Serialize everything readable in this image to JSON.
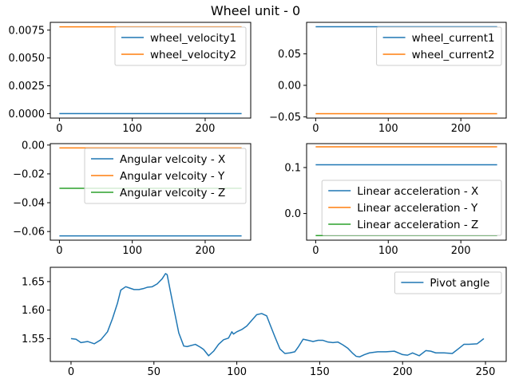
{
  "figure": {
    "suptitle": "Wheel unit - 0"
  },
  "chart_data": [
    {
      "type": "line",
      "title": "",
      "xlabel": "",
      "ylabel": "",
      "xlim": [
        -12.5,
        262.5
      ],
      "ylim": [
        -0.0004,
        0.0082
      ],
      "xticks": [
        0,
        100,
        200
      ],
      "yticks": [
        0.0,
        0.0025,
        0.005,
        0.0075
      ],
      "ytick_labels": [
        "0.0000",
        "0.0025",
        "0.0050",
        "0.0075"
      ],
      "grid": false,
      "legend_position": "upper-right",
      "series": [
        {
          "name": "wheel_velocity1",
          "color": "#1f77b4",
          "x": [
            0,
            250
          ],
          "y": [
            0.0,
            0.0
          ]
        },
        {
          "name": "wheel_velocity2",
          "color": "#ff7f0e",
          "x": [
            0,
            250
          ],
          "y": [
            0.0078,
            0.0078
          ]
        }
      ]
    },
    {
      "type": "line",
      "title": "",
      "xlabel": "",
      "ylabel": "",
      "xlim": [
        -12.5,
        262.5
      ],
      "ylim": [
        -0.052,
        0.1
      ],
      "xticks": [
        0,
        100,
        200
      ],
      "yticks": [
        -0.05,
        0.0,
        0.05
      ],
      "ytick_labels": [
        "−0.05",
        "0.00",
        "0.05"
      ],
      "grid": false,
      "legend_position": "upper-right",
      "series": [
        {
          "name": "wheel_current1",
          "color": "#1f77b4",
          "x": [
            0,
            250
          ],
          "y": [
            0.093,
            0.093
          ]
        },
        {
          "name": "wheel_current2",
          "color": "#ff7f0e",
          "x": [
            0,
            250
          ],
          "y": [
            -0.045,
            -0.045
          ]
        }
      ]
    },
    {
      "type": "line",
      "title": "",
      "xlabel": "",
      "ylabel": "",
      "xlim": [
        -12.5,
        262.5
      ],
      "ylim": [
        -0.066,
        0.001
      ],
      "xticks": [
        0,
        100,
        200
      ],
      "yticks": [
        0.0,
        -0.02,
        -0.04,
        -0.06
      ],
      "ytick_labels": [
        "0.00",
        "−0.02",
        "−0.04",
        "−0.06"
      ],
      "grid": false,
      "legend_position": "upper-right",
      "series": [
        {
          "name": "Angular velcoity - X",
          "color": "#1f77b4",
          "x": [
            0,
            250
          ],
          "y": [
            -0.063,
            -0.063
          ]
        },
        {
          "name": "Angular velcoity - Y",
          "color": "#ff7f0e",
          "x": [
            0,
            250
          ],
          "y": [
            -0.002,
            -0.002
          ]
        },
        {
          "name": "Angular velcoity - Z",
          "color": "#2ca02c",
          "x": [
            0,
            250
          ],
          "y": [
            -0.03,
            -0.03
          ]
        }
      ]
    },
    {
      "type": "line",
      "title": "",
      "xlabel": "",
      "ylabel": "",
      "xlim": [
        -12.5,
        262.5
      ],
      "ylim": [
        -0.058,
        0.152
      ],
      "xticks": [
        0,
        100,
        200
      ],
      "yticks": [
        0.0,
        0.1
      ],
      "ytick_labels": [
        "0.0",
        "0.1"
      ],
      "grid": false,
      "legend_position": "lower-right",
      "series": [
        {
          "name": "Linear acceleration - X",
          "color": "#1f77b4",
          "x": [
            0,
            250
          ],
          "y": [
            0.106,
            0.106
          ]
        },
        {
          "name": "Linear acceleration - Y",
          "color": "#ff7f0e",
          "x": [
            0,
            250
          ],
          "y": [
            0.145,
            0.145
          ]
        },
        {
          "name": "Linear acceleration - Z",
          "color": "#2ca02c",
          "x": [
            0,
            250
          ],
          "y": [
            -0.048,
            -0.048
          ]
        }
      ]
    },
    {
      "type": "line",
      "title": "",
      "xlabel": "",
      "ylabel": "",
      "xlim": [
        -12.5,
        262.5
      ],
      "ylim": [
        1.51,
        1.675
      ],
      "xticks": [
        0,
        50,
        100,
        150,
        200,
        250
      ],
      "yticks": [
        1.55,
        1.6,
        1.65
      ],
      "ytick_labels": [
        "1.55",
        "1.60",
        "1.65"
      ],
      "grid": false,
      "legend_position": "upper-right",
      "series": [
        {
          "name": "Pivot angle",
          "color": "#1f77b4",
          "x": [
            0,
            3,
            6,
            10,
            14,
            18,
            22,
            25,
            28,
            30,
            33,
            35,
            38,
            41,
            44,
            46,
            49,
            52,
            55,
            57,
            58,
            60,
            62,
            65,
            68,
            70,
            75,
            78,
            80,
            83,
            86,
            89,
            92,
            95,
            97,
            98,
            100,
            103,
            106,
            109,
            112,
            115,
            118,
            120,
            123,
            126,
            129,
            132,
            135,
            137,
            140,
            143,
            146,
            149,
            152,
            155,
            158,
            161,
            164,
            167,
            170,
            172,
            174,
            177,
            180,
            185,
            190,
            195,
            200,
            203,
            206,
            210,
            214,
            217,
            220,
            225,
            230,
            234,
            237,
            240,
            245,
            249
          ],
          "y": [
            1.55,
            1.549,
            1.543,
            1.545,
            1.541,
            1.548,
            1.562,
            1.585,
            1.612,
            1.635,
            1.641,
            1.639,
            1.636,
            1.636,
            1.638,
            1.64,
            1.641,
            1.646,
            1.655,
            1.664,
            1.662,
            1.632,
            1.603,
            1.56,
            1.537,
            1.536,
            1.54,
            1.535,
            1.531,
            1.52,
            1.528,
            1.54,
            1.548,
            1.551,
            1.562,
            1.558,
            1.562,
            1.566,
            1.572,
            1.582,
            1.592,
            1.594,
            1.59,
            1.575,
            1.553,
            1.532,
            1.524,
            1.525,
            1.527,
            1.535,
            1.549,
            1.547,
            1.545,
            1.547,
            1.547,
            1.544,
            1.543,
            1.544,
            1.539,
            1.533,
            1.524,
            1.519,
            1.518,
            1.522,
            1.525,
            1.527,
            1.527,
            1.528,
            1.522,
            1.521,
            1.525,
            1.52,
            1.529,
            1.528,
            1.525,
            1.525,
            1.524,
            1.533,
            1.54,
            1.54,
            1.541,
            1.55
          ]
        }
      ]
    }
  ]
}
